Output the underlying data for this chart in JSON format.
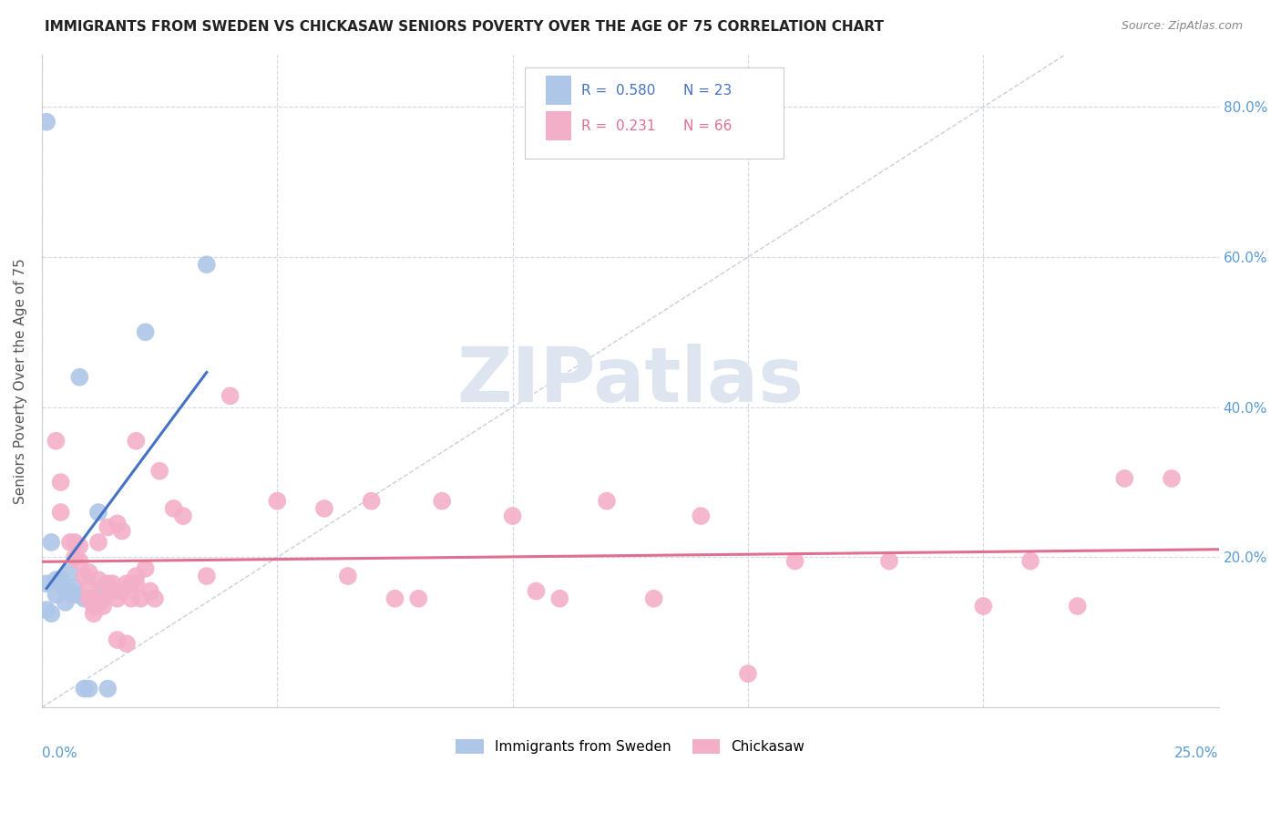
{
  "title": "IMMIGRANTS FROM SWEDEN VS CHICKASAW SENIORS POVERTY OVER THE AGE OF 75 CORRELATION CHART",
  "source": "Source: ZipAtlas.com",
  "ylabel": "Seniors Poverty Over the Age of 75",
  "xlim": [
    0.0,
    0.25
  ],
  "ylim": [
    0.0,
    0.87
  ],
  "legend_r_sweden": "0.580",
  "legend_n_sweden": "23",
  "legend_r_chickasaw": "0.231",
  "legend_n_chickasaw": "66",
  "sweden_color": "#aec6e8",
  "chickasaw_color": "#f4afc8",
  "sweden_line_color": "#4472c4",
  "chickasaw_line_color": "#e07090",
  "diagonal_color": "#c8cfe0",
  "watermark_color": "#dce5f0",
  "sweden_points": [
    [
      0.001,
      0.78
    ],
    [
      0.012,
      0.26
    ],
    [
      0.008,
      0.44
    ],
    [
      0.022,
      0.5
    ],
    [
      0.035,
      0.59
    ],
    [
      0.001,
      0.165
    ],
    [
      0.002,
      0.22
    ],
    [
      0.003,
      0.17
    ],
    [
      0.003,
      0.15
    ],
    [
      0.004,
      0.17
    ],
    [
      0.005,
      0.155
    ],
    [
      0.005,
      0.14
    ],
    [
      0.006,
      0.155
    ],
    [
      0.006,
      0.18
    ],
    [
      0.007,
      0.16
    ],
    [
      0.007,
      0.15
    ],
    [
      0.009,
      0.145
    ],
    [
      0.009,
      0.025
    ],
    [
      0.01,
      0.025
    ],
    [
      0.014,
      0.025
    ],
    [
      0.013,
      0.16
    ],
    [
      0.001,
      0.13
    ],
    [
      0.002,
      0.125
    ]
  ],
  "chickasaw_points": [
    [
      0.003,
      0.355
    ],
    [
      0.004,
      0.3
    ],
    [
      0.004,
      0.26
    ],
    [
      0.006,
      0.22
    ],
    [
      0.007,
      0.2
    ],
    [
      0.007,
      0.22
    ],
    [
      0.008,
      0.195
    ],
    [
      0.008,
      0.215
    ],
    [
      0.009,
      0.175
    ],
    [
      0.01,
      0.18
    ],
    [
      0.01,
      0.16
    ],
    [
      0.011,
      0.145
    ],
    [
      0.011,
      0.135
    ],
    [
      0.012,
      0.22
    ],
    [
      0.012,
      0.17
    ],
    [
      0.012,
      0.14
    ],
    [
      0.013,
      0.145
    ],
    [
      0.013,
      0.135
    ],
    [
      0.014,
      0.24
    ],
    [
      0.014,
      0.165
    ],
    [
      0.015,
      0.165
    ],
    [
      0.015,
      0.155
    ],
    [
      0.016,
      0.245
    ],
    [
      0.016,
      0.145
    ],
    [
      0.016,
      0.09
    ],
    [
      0.017,
      0.235
    ],
    [
      0.017,
      0.155
    ],
    [
      0.018,
      0.165
    ],
    [
      0.018,
      0.085
    ],
    [
      0.019,
      0.165
    ],
    [
      0.019,
      0.145
    ],
    [
      0.02,
      0.175
    ],
    [
      0.02,
      0.355
    ],
    [
      0.02,
      0.165
    ],
    [
      0.021,
      0.145
    ],
    [
      0.022,
      0.185
    ],
    [
      0.023,
      0.155
    ],
    [
      0.024,
      0.145
    ],
    [
      0.025,
      0.315
    ],
    [
      0.028,
      0.265
    ],
    [
      0.03,
      0.255
    ],
    [
      0.035,
      0.175
    ],
    [
      0.04,
      0.415
    ],
    [
      0.05,
      0.275
    ],
    [
      0.06,
      0.265
    ],
    [
      0.065,
      0.175
    ],
    [
      0.07,
      0.275
    ],
    [
      0.075,
      0.145
    ],
    [
      0.08,
      0.145
    ],
    [
      0.085,
      0.275
    ],
    [
      0.1,
      0.255
    ],
    [
      0.105,
      0.155
    ],
    [
      0.11,
      0.145
    ],
    [
      0.12,
      0.275
    ],
    [
      0.13,
      0.145
    ],
    [
      0.14,
      0.255
    ],
    [
      0.15,
      0.045
    ],
    [
      0.16,
      0.195
    ],
    [
      0.18,
      0.195
    ],
    [
      0.2,
      0.135
    ],
    [
      0.21,
      0.195
    ],
    [
      0.22,
      0.135
    ],
    [
      0.23,
      0.305
    ],
    [
      0.24,
      0.305
    ],
    [
      0.01,
      0.145
    ],
    [
      0.011,
      0.125
    ]
  ]
}
